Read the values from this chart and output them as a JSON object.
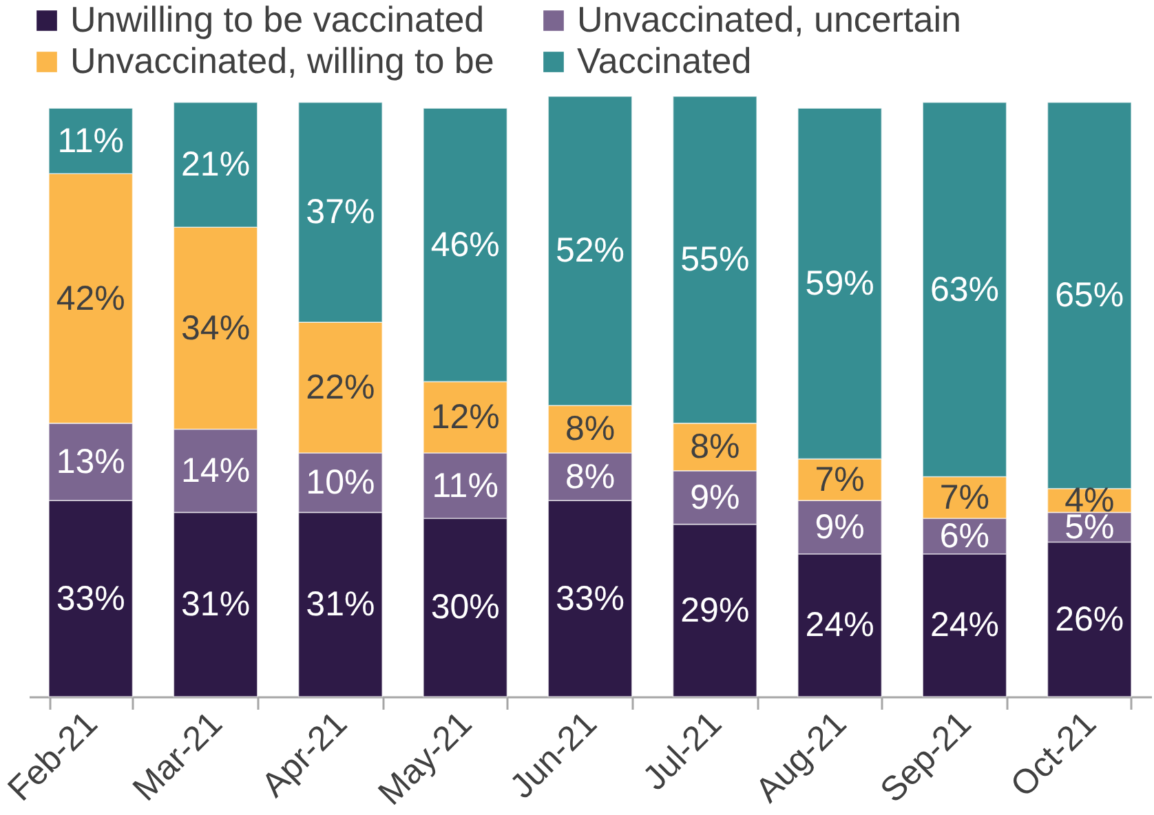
{
  "chart_data": {
    "type": "bar",
    "stacked": true,
    "categories": [
      "Feb-21",
      "Mar-21",
      "Apr-21",
      "May-21",
      "Jun-21",
      "Jul-21",
      "Aug-21",
      "Sep-21",
      "Oct-21"
    ],
    "series": [
      {
        "name": "Unwilling to be vaccinated",
        "color": "#2e1a47",
        "values": [
          33,
          31,
          31,
          30,
          33,
          29,
          24,
          24,
          26
        ],
        "value_labels": [
          "33%",
          "31%",
          "31%",
          "30%",
          "33%",
          "29%",
          "24%",
          "24%",
          "26%"
        ]
      },
      {
        "name": "Unvaccinated, uncertain",
        "color": "#7b6690",
        "values": [
          13,
          14,
          10,
          11,
          8,
          9,
          9,
          6,
          5
        ],
        "value_labels": [
          "13%",
          "14%",
          "10%",
          "11%",
          "8%",
          "9%",
          "9%",
          "6%",
          "5%"
        ]
      },
      {
        "name": "Unvaccinated, willing to be",
        "color": "#fbb74b",
        "values": [
          42,
          34,
          22,
          12,
          8,
          8,
          7,
          7,
          4
        ],
        "value_labels": [
          "42%",
          "34%",
          "22%",
          "12%",
          "8%",
          "8%",
          "7%",
          "7%",
          "4%"
        ]
      },
      {
        "name": "Vaccinated",
        "color": "#368e92",
        "values": [
          11,
          21,
          37,
          46,
          52,
          55,
          59,
          63,
          65
        ],
        "value_labels": [
          "11%",
          "21%",
          "37%",
          "46%",
          "52%",
          "55%",
          "59%",
          "63%",
          "65%"
        ]
      }
    ],
    "ylim": [
      0,
      101
    ],
    "tick_labels": "x",
    "legend": "top"
  }
}
